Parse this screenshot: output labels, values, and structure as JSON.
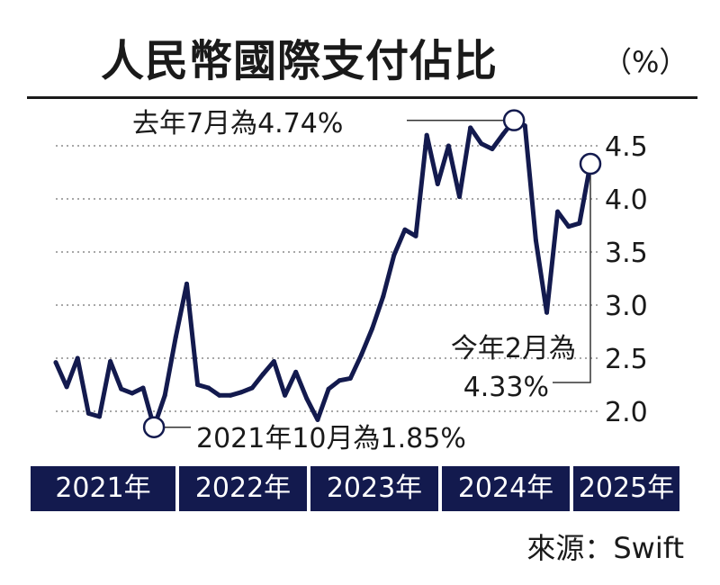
{
  "title": "人民幣國際支付佔比",
  "unit": "（%）",
  "source": "來源：Swift",
  "chart_data": {
    "type": "line",
    "title": "人民幣國際支付佔比",
    "ylabel": "（%）",
    "ylim": [
      1.75,
      4.85
    ],
    "yticks": [
      "4.5",
      "4.0",
      "3.5",
      "3.0",
      "2.5",
      "2.0"
    ],
    "year_labels": [
      "2021年",
      "2022年",
      "2023年",
      "2024年",
      "2025年"
    ],
    "grid": true,
    "series": [
      {
        "values": [
          2.46,
          2.23,
          2.5,
          1.98,
          1.95,
          2.47,
          2.21,
          2.17,
          2.22,
          1.85,
          2.15,
          2.7,
          3.2,
          2.25,
          2.22,
          2.15,
          2.15,
          2.18,
          2.22,
          2.35,
          2.47,
          2.15,
          2.37,
          2.12,
          1.92,
          2.21,
          2.29,
          2.31,
          2.53,
          2.78,
          3.08,
          3.47,
          3.71,
          3.65,
          4.6,
          4.14,
          4.5,
          4.02,
          4.67,
          4.52,
          4.47,
          4.61,
          4.74,
          4.69,
          3.61,
          2.93,
          3.88,
          3.74,
          3.77,
          4.33
        ]
      }
    ],
    "annotations": [
      {
        "label": "去年7月為4.74%"
      },
      {
        "label": "2021年10月為1.85%"
      },
      {
        "label_line1": "今年2月為",
        "label_line2": "4.33%"
      }
    ]
  }
}
